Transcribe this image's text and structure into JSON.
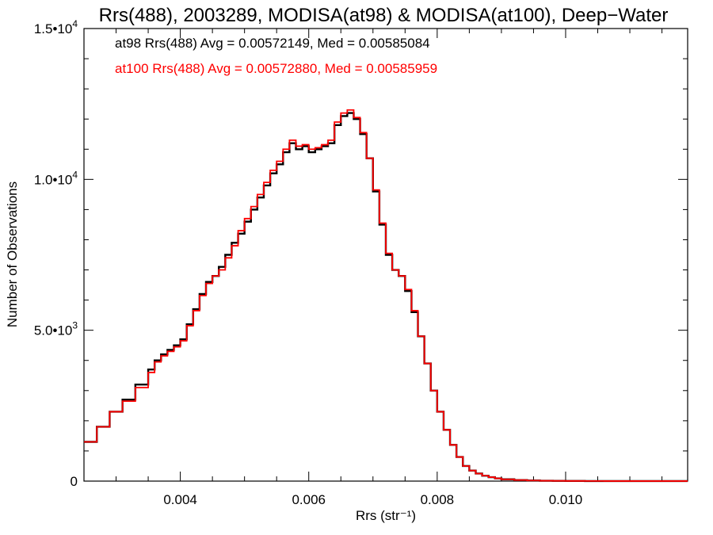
{
  "chart_data": {
    "type": "line",
    "title": "Rrs(488), 2003289, MODISA(at98) & MODISA(at100), Deep−Water",
    "xlabel": "Rrs (str⁻¹)",
    "ylabel": "Number of Observations",
    "xlim": [
      0.0025,
      0.0119
    ],
    "ylim": [
      0,
      15000
    ],
    "x_ticks": [
      {
        "value": 0.004,
        "label": "0.004"
      },
      {
        "value": 0.006,
        "label": "0.006"
      },
      {
        "value": 0.008,
        "label": "0.008"
      },
      {
        "value": 0.01,
        "label": "0.010"
      }
    ],
    "y_ticks": [
      {
        "value": 0,
        "label": "0",
        "base": "0",
        "exp": ""
      },
      {
        "value": 5000,
        "label": "5.0•10³",
        "base": "5.0•10",
        "exp": "3"
      },
      {
        "value": 10000,
        "label": "1.0•10⁴",
        "base": "1.0•10",
        "exp": "4"
      },
      {
        "value": 15000,
        "label": "1.5•10⁴",
        "base": "1.5•10",
        "exp": "4"
      }
    ],
    "grid": false,
    "legend_position": "top-left",
    "series": [
      {
        "name": "at98",
        "color": "#000000",
        "legend_text": "at98 Rrs(488) Avg = 0.00572149, Med = 0.00585084",
        "x": [
          0.0025,
          0.0027,
          0.0029,
          0.0031,
          0.0033,
          0.0035,
          0.0036,
          0.0037,
          0.0038,
          0.0039,
          0.004,
          0.0041,
          0.0042,
          0.0043,
          0.0044,
          0.0045,
          0.0046,
          0.0047,
          0.0048,
          0.0049,
          0.005,
          0.0051,
          0.0052,
          0.0053,
          0.0054,
          0.0055,
          0.0056,
          0.0057,
          0.0058,
          0.0059,
          0.006,
          0.0061,
          0.0062,
          0.0063,
          0.0064,
          0.0065,
          0.0066,
          0.0067,
          0.0068,
          0.0069,
          0.007,
          0.0071,
          0.0072,
          0.0073,
          0.0074,
          0.0075,
          0.0076,
          0.0077,
          0.0078,
          0.0079,
          0.008,
          0.0081,
          0.0082,
          0.0083,
          0.0084,
          0.0085,
          0.0086,
          0.0087,
          0.0088,
          0.0089,
          0.009,
          0.0092,
          0.0094,
          0.0096,
          0.0098,
          0.01,
          0.0103,
          0.0106,
          0.011,
          0.0114,
          0.0119
        ],
        "y": [
          1300,
          1800,
          2300,
          2700,
          3200,
          3700,
          4000,
          4200,
          4350,
          4500,
          4700,
          5200,
          5700,
          6200,
          6600,
          6800,
          7100,
          7500,
          7900,
          8200,
          8600,
          9000,
          9400,
          9800,
          10200,
          10500,
          10900,
          11200,
          11000,
          11100,
          10900,
          11000,
          11100,
          11200,
          11800,
          12100,
          12200,
          12000,
          11500,
          10700,
          9600,
          8500,
          7500,
          7000,
          6800,
          6300,
          5600,
          4800,
          3900,
          3000,
          2300,
          1700,
          1200,
          800,
          500,
          350,
          250,
          180,
          130,
          90,
          60,
          35,
          20,
          12,
          8,
          5,
          3,
          2,
          1,
          1,
          1
        ]
      },
      {
        "name": "at100",
        "color": "#ff0000",
        "legend_text": "at100 Rrs(488) Avg = 0.00572880, Med = 0.00585959",
        "x": [
          0.0025,
          0.0027,
          0.0029,
          0.0031,
          0.0033,
          0.0035,
          0.0036,
          0.0037,
          0.0038,
          0.0039,
          0.004,
          0.0041,
          0.0042,
          0.0043,
          0.0044,
          0.0045,
          0.0046,
          0.0047,
          0.0048,
          0.0049,
          0.005,
          0.0051,
          0.0052,
          0.0053,
          0.0054,
          0.0055,
          0.0056,
          0.0057,
          0.0058,
          0.0059,
          0.006,
          0.0061,
          0.0062,
          0.0063,
          0.0064,
          0.0065,
          0.0066,
          0.0067,
          0.0068,
          0.0069,
          0.007,
          0.0071,
          0.0072,
          0.0073,
          0.0074,
          0.0075,
          0.0076,
          0.0077,
          0.0078,
          0.0079,
          0.008,
          0.0081,
          0.0082,
          0.0083,
          0.0084,
          0.0085,
          0.0086,
          0.0087,
          0.0088,
          0.0089,
          0.009,
          0.0092,
          0.0094,
          0.0096,
          0.0098,
          0.01,
          0.0103,
          0.0106,
          0.011,
          0.0114,
          0.0119
        ],
        "y": [
          1300,
          1800,
          2300,
          2650,
          3100,
          3600,
          3950,
          4150,
          4300,
          4450,
          4650,
          5150,
          5650,
          6150,
          6550,
          6800,
          7000,
          7400,
          7800,
          8300,
          8700,
          9100,
          9500,
          9900,
          10300,
          10600,
          11000,
          11300,
          11100,
          11150,
          11000,
          11050,
          11150,
          11300,
          11900,
          12200,
          12300,
          12050,
          11550,
          10700,
          9650,
          8550,
          7550,
          7000,
          6800,
          6350,
          5650,
          4800,
          3900,
          3000,
          2300,
          1700,
          1200,
          800,
          500,
          350,
          250,
          180,
          130,
          90,
          60,
          35,
          20,
          12,
          8,
          5,
          3,
          2,
          1,
          1,
          1
        ]
      }
    ]
  }
}
